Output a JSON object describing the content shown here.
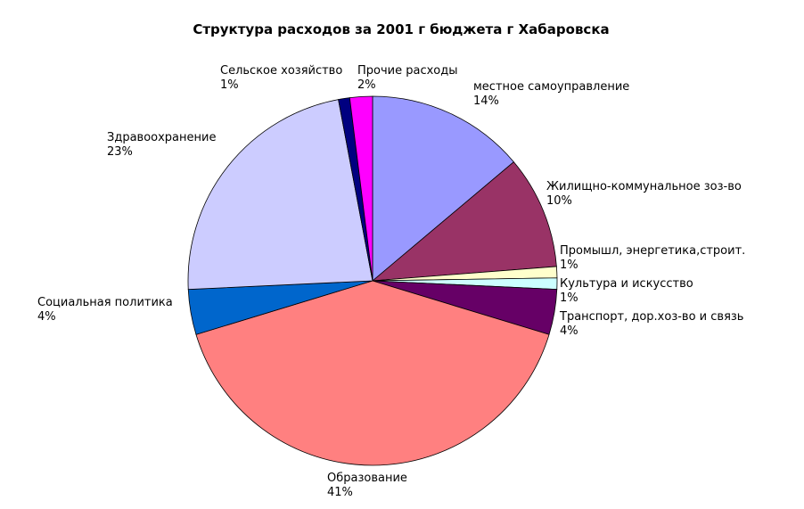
{
  "chart_data": {
    "type": "pie",
    "title": "Структура расходов за 2001 г бюджета г Хабаровска",
    "categories": [
      "местное самоуправление",
      "Жилищно-коммунальное зоз-во",
      "Промышл, энергетика,строит.",
      "Культура и искусство",
      "Транспорт, дор.хоз-во и связь",
      "Образование",
      "Социальная политика",
      "Здравоохранение",
      "Сельское хозяйство",
      "Прочие расходы"
    ],
    "values": [
      14,
      10,
      1,
      1,
      4,
      41,
      4,
      23,
      1,
      2
    ],
    "value_labels": [
      "14%",
      "10%",
      "1%",
      "1%",
      "4%",
      "41%",
      "4%",
      "23%",
      "1%",
      "2%"
    ],
    "colors": [
      "#9999ff",
      "#993366",
      "#ffffcc",
      "#ccffff",
      "#660066",
      "#ff8080",
      "#0066cc",
      "#ccccff",
      "#000080",
      "#ff00ff"
    ]
  }
}
